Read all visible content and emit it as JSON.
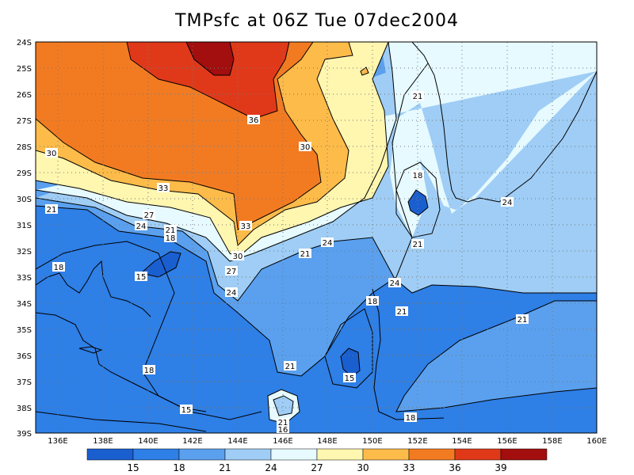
{
  "title": "TMPsfc at 06Z Tue 07dec2004",
  "axes": {
    "lat_ticks": [
      "24S",
      "25S",
      "26S",
      "27S",
      "28S",
      "29S",
      "30S",
      "31S",
      "32S",
      "33S",
      "34S",
      "35S",
      "36S",
      "37S",
      "38S",
      "39S"
    ],
    "lon_ticks": [
      "136E",
      "138E",
      "140E",
      "142E",
      "144E",
      "146E",
      "148E",
      "150E",
      "152E",
      "154E",
      "156E",
      "158E",
      "160E"
    ],
    "lat_range": [
      -39,
      -24
    ],
    "lon_range": [
      135,
      160
    ],
    "grid": true
  },
  "colorbar": {
    "labels": [
      "15",
      "18",
      "21",
      "24",
      "27",
      "30",
      "33",
      "36",
      "39"
    ],
    "colors": [
      "#1a5fd0",
      "#2e7fe6",
      "#5aa0ee",
      "#9fcdf5",
      "#e6faff",
      "#fff6b0",
      "#fdbb4a",
      "#f27b22",
      "#e0391a",
      "#a30e0e"
    ]
  },
  "contour_labels": [
    {
      "text": "36"
    },
    {
      "text": "30"
    },
    {
      "text": "30"
    },
    {
      "text": "33"
    },
    {
      "text": "27"
    },
    {
      "text": "24"
    },
    {
      "text": "21"
    },
    {
      "text": "18"
    },
    {
      "text": "21"
    },
    {
      "text": "33"
    },
    {
      "text": "21"
    },
    {
      "text": "18"
    },
    {
      "text": "30"
    },
    {
      "text": "27"
    },
    {
      "text": "15"
    },
    {
      "text": "18"
    },
    {
      "text": "24"
    },
    {
      "text": "21"
    },
    {
      "text": "24"
    },
    {
      "text": "24"
    },
    {
      "text": "18"
    },
    {
      "text": "21"
    },
    {
      "text": "24"
    },
    {
      "text": "21"
    },
    {
      "text": "18"
    },
    {
      "text": "21"
    },
    {
      "text": "15"
    },
    {
      "text": "18"
    },
    {
      "text": "15"
    },
    {
      "text": "21"
    },
    {
      "text": "16"
    },
    {
      "text": "18"
    },
    {
      "text": "21"
    }
  ]
}
